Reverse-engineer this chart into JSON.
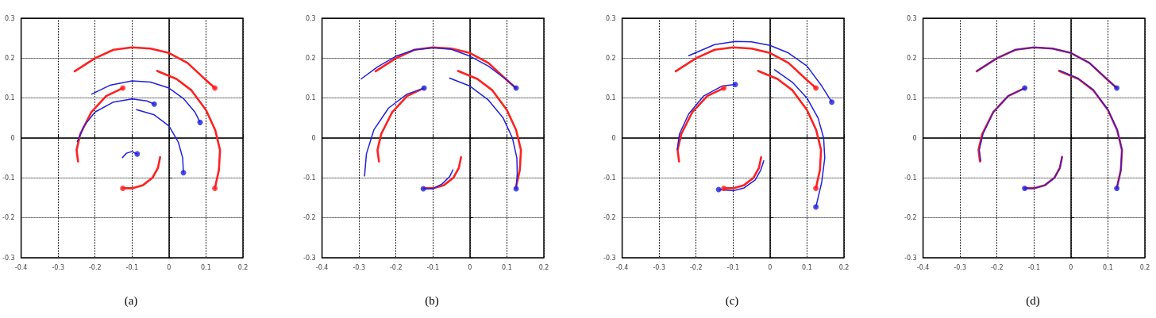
{
  "chart_data": [
    {
      "type": "line",
      "title": "(a)",
      "xlim": [
        -0.4,
        0.2
      ],
      "ylim": [
        -0.3,
        0.3
      ],
      "xticks": [
        -0.4,
        -0.3,
        -0.2,
        -0.1,
        0,
        0.1,
        0.2
      ],
      "yticks": [
        -0.3,
        -0.2,
        -0.1,
        0,
        0.1,
        0.2,
        0.3
      ],
      "grid": true,
      "series": [
        {
          "type": "line",
          "color": "#ff2020",
          "x": [
            -0.255,
            -0.2,
            -0.15,
            -0.1,
            -0.05,
            0,
            0.05,
            0.1,
            0.124
          ],
          "values": [
            0.167,
            0.2,
            0.221,
            0.227,
            0.224,
            0.213,
            0.188,
            0.145,
            0.125
          ]
        },
        {
          "type": "line",
          "color": "#ff2020",
          "x": [
            -0.032,
            0.02,
            0.06,
            0.1,
            0.125,
            0.138,
            0.135,
            0.124
          ],
          "values": [
            0.168,
            0.148,
            0.12,
            0.07,
            0.02,
            -0.03,
            -0.08,
            -0.126
          ]
        },
        {
          "type": "line",
          "color": "#ff2020",
          "x": [
            -0.125,
            -0.17,
            -0.21,
            -0.24,
            -0.25,
            -0.246
          ],
          "values": [
            0.125,
            0.105,
            0.065,
            0.01,
            -0.03,
            -0.059
          ]
        },
        {
          "type": "line",
          "color": "#ff2020",
          "x": [
            -0.125,
            -0.1,
            -0.07,
            -0.045,
            -0.03,
            -0.024
          ],
          "values": [
            -0.126,
            -0.126,
            -0.118,
            -0.1,
            -0.075,
            -0.048
          ]
        },
        {
          "type": "line",
          "color": "#2020e0",
          "x": [
            -0.209,
            -0.16,
            -0.1,
            -0.05,
            0,
            0.04,
            0.07,
            0.084
          ],
          "values": [
            0.11,
            0.132,
            0.143,
            0.14,
            0.125,
            0.098,
            0.065,
            0.039
          ]
        },
        {
          "type": "line",
          "color": "#2020e0",
          "x": [
            -0.248,
            -0.23,
            -0.2,
            -0.15,
            -0.1,
            -0.06,
            -0.04
          ],
          "values": [
            -0.009,
            0.03,
            0.065,
            0.09,
            0.098,
            0.093,
            0.085
          ]
        },
        {
          "type": "line",
          "color": "#2020e0",
          "x": [
            -0.088,
            -0.04,
            0,
            0.025,
            0.037,
            0.039
          ],
          "values": [
            0.071,
            0.058,
            0.03,
            -0.01,
            -0.05,
            -0.087
          ]
        },
        {
          "type": "line",
          "color": "#2020e0",
          "x": [
            -0.126,
            -0.115,
            -0.1,
            -0.086
          ],
          "values": [
            -0.049,
            -0.038,
            -0.034,
            -0.04
          ]
        },
        {
          "type": "scatter",
          "color": "#ff2020",
          "x": [
            0.124,
            0.124,
            -0.125,
            -0.125
          ],
          "values": [
            0.125,
            -0.126,
            0.125,
            -0.126
          ]
        },
        {
          "type": "scatter",
          "color": "#2020e0",
          "x": [
            0.084,
            -0.04,
            0.039,
            -0.086
          ],
          "values": [
            0.039,
            0.085,
            -0.087,
            -0.04
          ]
        }
      ]
    },
    {
      "type": "line",
      "title": "(b)",
      "xlim": [
        -0.4,
        0.2
      ],
      "ylim": [
        -0.3,
        0.3
      ],
      "xticks": [
        -0.4,
        -0.3,
        -0.2,
        -0.1,
        0,
        0.1,
        0.2
      ],
      "yticks": [
        -0.3,
        -0.2,
        -0.1,
        0,
        0.1,
        0.2,
        0.3
      ],
      "grid": true,
      "series": [
        {
          "type": "line",
          "color": "#ff2020",
          "x": [
            -0.255,
            -0.2,
            -0.15,
            -0.1,
            -0.05,
            0,
            0.05,
            0.1,
            0.124
          ],
          "values": [
            0.167,
            0.2,
            0.221,
            0.227,
            0.224,
            0.213,
            0.188,
            0.145,
            0.125
          ]
        },
        {
          "type": "line",
          "color": "#ff2020",
          "x": [
            -0.032,
            0.02,
            0.06,
            0.1,
            0.125,
            0.138,
            0.135,
            0.124
          ],
          "values": [
            0.168,
            0.148,
            0.12,
            0.07,
            0.02,
            -0.03,
            -0.08,
            -0.126
          ]
        },
        {
          "type": "line",
          "color": "#ff2020",
          "x": [
            -0.125,
            -0.17,
            -0.21,
            -0.24,
            -0.25,
            -0.246
          ],
          "values": [
            0.125,
            0.105,
            0.065,
            0.01,
            -0.03,
            -0.059
          ]
        },
        {
          "type": "line",
          "color": "#ff2020",
          "x": [
            -0.125,
            -0.1,
            -0.07,
            -0.045,
            -0.03,
            -0.024
          ],
          "values": [
            -0.126,
            -0.126,
            -0.118,
            -0.1,
            -0.075,
            -0.048
          ]
        },
        {
          "type": "line",
          "color": "#2020e0",
          "x": [
            -0.294,
            -0.25,
            -0.2,
            -0.15,
            -0.1,
            -0.05,
            0,
            0.05,
            0.1,
            0.125
          ],
          "values": [
            0.148,
            0.178,
            0.205,
            0.221,
            0.226,
            0.222,
            0.205,
            0.18,
            0.145,
            0.125
          ]
        },
        {
          "type": "line",
          "color": "#2020e0",
          "x": [
            -0.055,
            0,
            0.05,
            0.09,
            0.115,
            0.127,
            0.128,
            0.125
          ],
          "values": [
            0.15,
            0.13,
            0.095,
            0.05,
            0,
            -0.05,
            -0.09,
            -0.127
          ]
        },
        {
          "type": "line",
          "color": "#2020e0",
          "x": [
            -0.124,
            -0.17,
            -0.22,
            -0.26,
            -0.28,
            -0.285
          ],
          "values": [
            0.125,
            0.11,
            0.075,
            0.02,
            -0.04,
            -0.095
          ]
        },
        {
          "type": "line",
          "color": "#2020e0",
          "x": [
            -0.126,
            -0.1,
            -0.075,
            -0.055,
            -0.046
          ],
          "values": [
            -0.127,
            -0.127,
            -0.115,
            -0.097,
            -0.08
          ]
        },
        {
          "type": "scatter",
          "color": "#2020e0",
          "x": [
            0.125,
            0.125,
            -0.124,
            -0.126
          ],
          "values": [
            0.125,
            -0.127,
            0.125,
            -0.127
          ]
        }
      ]
    },
    {
      "type": "line",
      "title": "(c)",
      "xlim": [
        -0.4,
        0.2
      ],
      "ylim": [
        -0.3,
        0.3
      ],
      "xticks": [
        -0.4,
        -0.3,
        -0.2,
        -0.1,
        0,
        0.1,
        0.2
      ],
      "yticks": [
        -0.3,
        -0.2,
        -0.1,
        0,
        0.1,
        0.2,
        0.3
      ],
      "grid": true,
      "series": [
        {
          "type": "line",
          "color": "#ff2020",
          "x": [
            -0.255,
            -0.2,
            -0.15,
            -0.1,
            -0.05,
            0,
            0.05,
            0.1,
            0.124
          ],
          "values": [
            0.167,
            0.2,
            0.221,
            0.227,
            0.224,
            0.213,
            0.188,
            0.145,
            0.125
          ]
        },
        {
          "type": "line",
          "color": "#ff2020",
          "x": [
            -0.032,
            0.02,
            0.06,
            0.1,
            0.125,
            0.138,
            0.135,
            0.124
          ],
          "values": [
            0.168,
            0.148,
            0.12,
            0.07,
            0.02,
            -0.03,
            -0.08,
            -0.126
          ]
        },
        {
          "type": "line",
          "color": "#ff2020",
          "x": [
            -0.125,
            -0.17,
            -0.21,
            -0.24,
            -0.25,
            -0.246
          ],
          "values": [
            0.125,
            0.105,
            0.065,
            0.01,
            -0.03,
            -0.059
          ]
        },
        {
          "type": "line",
          "color": "#ff2020",
          "x": [
            -0.125,
            -0.1,
            -0.07,
            -0.045,
            -0.03,
            -0.024
          ],
          "values": [
            -0.126,
            -0.126,
            -0.118,
            -0.1,
            -0.075,
            -0.048
          ]
        },
        {
          "type": "line",
          "color": "#2020e0",
          "x": [
            -0.22,
            -0.15,
            -0.094,
            -0.05,
            0,
            0.05,
            0.1,
            0.14,
            0.167
          ],
          "values": [
            0.206,
            0.234,
            0.242,
            0.241,
            0.232,
            0.213,
            0.18,
            0.13,
            0.09
          ]
        },
        {
          "type": "line",
          "color": "#2020e0",
          "x": [
            0.012,
            0.06,
            0.1,
            0.13,
            0.145,
            0.148,
            0.14,
            0.124
          ],
          "values": [
            0.171,
            0.14,
            0.1,
            0.05,
            0,
            -0.05,
            -0.11,
            -0.173
          ]
        },
        {
          "type": "line",
          "color": "#2020e0",
          "x": [
            -0.094,
            -0.13,
            -0.18,
            -0.22,
            -0.245,
            -0.251
          ],
          "values": [
            0.134,
            0.13,
            0.105,
            0.06,
            0.01,
            -0.029
          ]
        },
        {
          "type": "line",
          "color": "#2020e0",
          "x": [
            -0.139,
            -0.1,
            -0.07,
            -0.04,
            -0.025,
            -0.017
          ],
          "values": [
            -0.129,
            -0.132,
            -0.125,
            -0.105,
            -0.08,
            -0.057
          ]
        },
        {
          "type": "scatter",
          "color": "#ff2020",
          "x": [
            0.124,
            0.124,
            -0.125,
            -0.125
          ],
          "values": [
            0.125,
            -0.126,
            0.125,
            -0.126
          ]
        },
        {
          "type": "scatter",
          "color": "#2020e0",
          "x": [
            0.167,
            0.124,
            -0.094,
            -0.139
          ],
          "values": [
            0.09,
            -0.173,
            0.134,
            -0.129
          ]
        }
      ]
    },
    {
      "type": "line",
      "title": "(d)",
      "xlim": [
        -0.4,
        0.2
      ],
      "ylim": [
        -0.3,
        0.3
      ],
      "xticks": [
        -0.4,
        -0.3,
        -0.2,
        -0.1,
        0,
        0.1,
        0.2
      ],
      "yticks": [
        -0.3,
        -0.2,
        -0.1,
        0,
        0.1,
        0.2,
        0.3
      ],
      "grid": true,
      "series": [
        {
          "type": "line",
          "color": "#ff2020",
          "x": [
            -0.255,
            -0.2,
            -0.15,
            -0.1,
            -0.05,
            0,
            0.05,
            0.1,
            0.124
          ],
          "values": [
            0.167,
            0.2,
            0.221,
            0.227,
            0.224,
            0.213,
            0.188,
            0.145,
            0.125
          ]
        },
        {
          "type": "line",
          "color": "#ff2020",
          "x": [
            -0.032,
            0.02,
            0.06,
            0.1,
            0.125,
            0.138,
            0.135,
            0.124
          ],
          "values": [
            0.168,
            0.148,
            0.12,
            0.07,
            0.02,
            -0.03,
            -0.08,
            -0.126
          ]
        },
        {
          "type": "line",
          "color": "#ff2020",
          "x": [
            -0.125,
            -0.17,
            -0.21,
            -0.24,
            -0.25,
            -0.246
          ],
          "values": [
            0.125,
            0.105,
            0.065,
            0.01,
            -0.03,
            -0.059
          ]
        },
        {
          "type": "line",
          "color": "#ff2020",
          "x": [
            -0.125,
            -0.1,
            -0.07,
            -0.045,
            -0.03,
            -0.024
          ],
          "values": [
            -0.126,
            -0.126,
            -0.118,
            -0.1,
            -0.075,
            -0.048
          ]
        },
        {
          "type": "line",
          "color": "#3020d0",
          "x": [
            -0.254,
            -0.2,
            -0.15,
            -0.1,
            -0.05,
            0,
            0.05,
            0.1,
            0.124
          ],
          "values": [
            0.168,
            0.2,
            0.221,
            0.227,
            0.224,
            0.213,
            0.188,
            0.145,
            0.125
          ]
        },
        {
          "type": "line",
          "color": "#3020d0",
          "x": [
            -0.03,
            0.02,
            0.06,
            0.1,
            0.125,
            0.138,
            0.135,
            0.124
          ],
          "values": [
            0.169,
            0.149,
            0.121,
            0.071,
            0.021,
            -0.03,
            -0.08,
            -0.126
          ]
        },
        {
          "type": "line",
          "color": "#3020d0",
          "x": [
            -0.125,
            -0.17,
            -0.21,
            -0.238,
            -0.248,
            -0.244
          ],
          "values": [
            0.125,
            0.105,
            0.065,
            0.01,
            -0.03,
            -0.057
          ]
        },
        {
          "type": "line",
          "color": "#3020d0",
          "x": [
            -0.125,
            -0.1,
            -0.07,
            -0.045,
            -0.03,
            -0.024
          ],
          "values": [
            -0.126,
            -0.126,
            -0.118,
            -0.1,
            -0.075,
            -0.046
          ]
        },
        {
          "type": "scatter",
          "color": "#2020e0",
          "x": [
            0.124,
            0.124,
            -0.125,
            -0.125
          ],
          "values": [
            0.125,
            -0.126,
            0.125,
            -0.126
          ]
        }
      ]
    }
  ]
}
